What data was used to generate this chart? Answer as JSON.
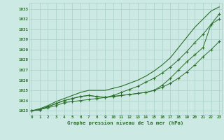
{
  "x": [
    0,
    1,
    2,
    3,
    4,
    5,
    6,
    7,
    8,
    9,
    10,
    11,
    12,
    13,
    14,
    15,
    16,
    17,
    18,
    19,
    20,
    21,
    22,
    23
  ],
  "line1": [
    1023.0,
    1023.1,
    1023.4,
    1023.7,
    1024.0,
    1024.2,
    1024.4,
    1024.5,
    1024.4,
    1024.3,
    1024.4,
    1024.5,
    1024.6,
    1024.7,
    1024.8,
    1025.0,
    1025.3,
    1025.7,
    1026.2,
    1026.8,
    1027.5,
    1028.3,
    1029.0,
    1029.8
  ],
  "line2": [
    1023.0,
    1023.1,
    1023.4,
    1023.7,
    1024.0,
    1024.2,
    1024.4,
    1024.5,
    1024.4,
    1024.3,
    1024.4,
    1024.5,
    1024.6,
    1024.7,
    1024.8,
    1025.0,
    1025.5,
    1026.2,
    1027.0,
    1027.8,
    1028.5,
    1029.2,
    1031.5,
    1032.0
  ],
  "line3": [
    1023.0,
    1023.1,
    1023.3,
    1023.5,
    1023.8,
    1023.9,
    1024.0,
    1024.1,
    1024.2,
    1024.3,
    1024.5,
    1024.8,
    1025.1,
    1025.4,
    1025.8,
    1026.2,
    1026.7,
    1027.3,
    1028.0,
    1028.8,
    1029.7,
    1030.5,
    1031.5,
    1032.5
  ],
  "line4": [
    1023.0,
    1023.2,
    1023.5,
    1023.9,
    1024.2,
    1024.5,
    1024.8,
    1025.0,
    1025.0,
    1025.0,
    1025.2,
    1025.4,
    1025.7,
    1026.0,
    1026.4,
    1026.9,
    1027.5,
    1028.2,
    1029.2,
    1030.2,
    1031.2,
    1032.0,
    1032.8,
    1033.2
  ],
  "bg_color": "#cce9e4",
  "grid_color": "#aacfc9",
  "line_color": "#2a6e2a",
  "ylabel_vals": [
    1023,
    1024,
    1025,
    1026,
    1027,
    1028,
    1029,
    1030,
    1031,
    1032,
    1033
  ],
  "xlabel": "Graphe pression niveau de la mer (hPa)",
  "ylim": [
    1022.6,
    1033.6
  ],
  "xlim": [
    -0.3,
    23.3
  ]
}
